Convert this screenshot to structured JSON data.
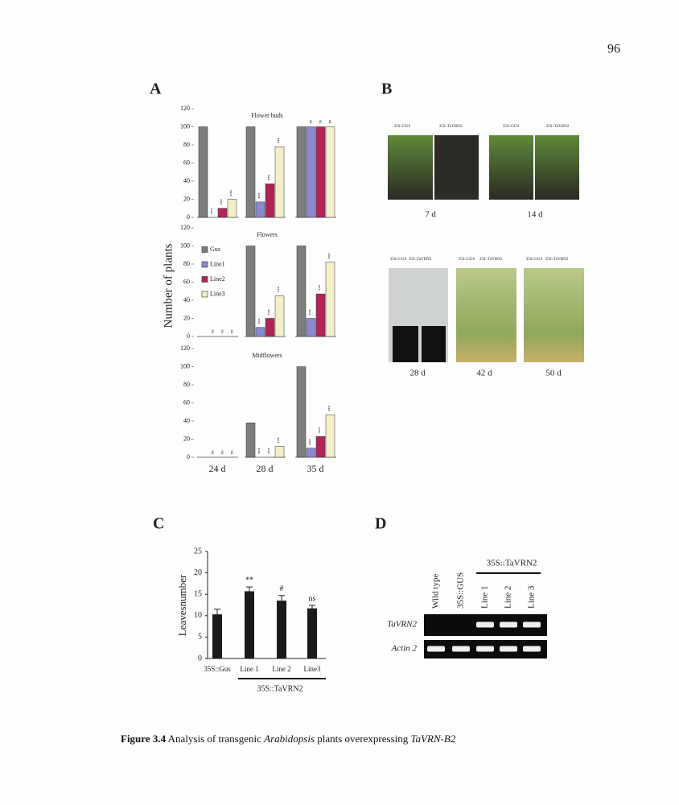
{
  "page_number": "96",
  "chart_data": [
    {
      "type": "grouped-bar-panels",
      "label": "A",
      "ylabel": "Number of plants",
      "categories": [
        "24 d",
        "28 d",
        "35 d"
      ],
      "legend": [
        {
          "name": "Gus",
          "color": "#7d7d7d"
        },
        {
          "name": "Line1",
          "color": "#8a8ad0"
        },
        {
          "name": "Line2",
          "color": "#b0245a"
        },
        {
          "name": "Line3",
          "color": "#f3efc8"
        }
      ],
      "ylim": [
        0,
        120
      ],
      "yticks": [
        0,
        20,
        40,
        60,
        80,
        100,
        120
      ],
      "subplots": [
        {
          "title": "Flower buds",
          "series": [
            {
              "values": [
                100,
                100,
                100
              ],
              "annotations": [
                null,
                null,
                null
              ]
            },
            {
              "values": [
                0,
                17,
                100
              ],
              "annotations": [
                "***",
                "***",
                "ns"
              ]
            },
            {
              "values": [
                10,
                37,
                100
              ],
              "annotations": [
                "***",
                "***",
                "ns"
              ]
            },
            {
              "values": [
                20,
                78,
                100
              ],
              "annotations": [
                "***",
                "***",
                "ns"
              ]
            }
          ]
        },
        {
          "title": "Flowers",
          "series": [
            {
              "values": [
                0,
                100,
                100
              ],
              "annotations": [
                null,
                null,
                null
              ]
            },
            {
              "values": [
                0,
                10,
                20
              ],
              "annotations": [
                "ns",
                "***",
                "***"
              ]
            },
            {
              "values": [
                0,
                20,
                47
              ],
              "annotations": [
                "ns",
                "***",
                "***"
              ]
            },
            {
              "values": [
                0,
                45,
                82
              ],
              "annotations": [
                "ns",
                "***",
                "***"
              ]
            }
          ]
        },
        {
          "title": "Midflowers",
          "series": [
            {
              "values": [
                0,
                38,
                100
              ],
              "annotations": [
                null,
                null,
                null
              ]
            },
            {
              "values": [
                0,
                0,
                10
              ],
              "annotations": [
                "ns",
                "***",
                "***"
              ]
            },
            {
              "values": [
                0,
                0,
                23
              ],
              "annotations": [
                "ns",
                "***",
                "***"
              ]
            },
            {
              "values": [
                0,
                12,
                47
              ],
              "annotations": [
                "ns",
                "***",
                "***"
              ]
            }
          ]
        }
      ]
    },
    {
      "type": "bar",
      "label": "C",
      "ylabel": "Leavesnumber",
      "categories": [
        "35S::Gus",
        "Line 1",
        "Line 2",
        "Line3"
      ],
      "values": [
        10.3,
        15.7,
        13.5,
        11.7
      ],
      "errors": [
        1.2,
        1.0,
        1.2,
        0.7
      ],
      "annotations": [
        null,
        "**",
        "#",
        "ns"
      ],
      "color": "#1a1a1a",
      "ylim": [
        0,
        25
      ],
      "yticks": [
        0,
        5,
        10,
        15,
        20,
        25
      ],
      "group_label": "35S::TaVRN2"
    }
  ],
  "panel_B": {
    "label": "B",
    "row1_labels": [
      "35S::GUS",
      "35S::TaVRN2",
      "35S::GUS",
      "35S::TaVRN2"
    ],
    "row1_days": [
      "7 d",
      "14 d"
    ],
    "row2_labels": [
      "35S::GUS",
      "35S::TaVRN2",
      "35S::GUS",
      "35S::TaVRN2",
      "35S::GUS",
      "35S::TaVRN2"
    ],
    "row2_days": [
      "28 d",
      "42 d",
      "50 d"
    ]
  },
  "panel_D": {
    "label": "D",
    "lanes": [
      "Wild type",
      "35S::GUS",
      "Line 1",
      "Line 2",
      "Line 3"
    ],
    "group_label": "35S::TaVRN2",
    "rows": [
      {
        "name": "TaVRN2",
        "bands": [
          false,
          false,
          true,
          true,
          true
        ]
      },
      {
        "name": "Actin 2",
        "bands": [
          true,
          true,
          true,
          true,
          true
        ]
      }
    ]
  },
  "caption": {
    "label": "Figure 3.4",
    "text1": "Analysis of transgenic",
    "species": "Arabidopsis",
    "text2": "plants overexpressing",
    "gene": "TaVRN-B2"
  }
}
